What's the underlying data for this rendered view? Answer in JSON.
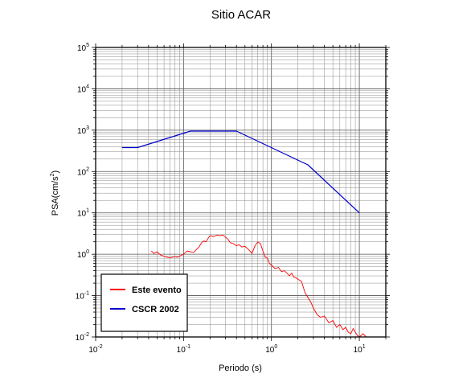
{
  "chart_data": {
    "type": "line",
    "title": "Sitio ACAR",
    "xlabel": "Periodo (s)",
    "ylabel_base": "PSA(cm/s",
    "ylabel_sup": "2",
    "ylabel_close": ")",
    "x_scale": "log",
    "y_scale": "log",
    "xlim": [
      0.01,
      20
    ],
    "ylim": [
      0.01,
      100000
    ],
    "grid": true,
    "legend_position": "bottom-left",
    "x_ticks": [
      {
        "base": "10",
        "exp": "-2",
        "value": 0.01
      },
      {
        "base": "10",
        "exp": "-1",
        "value": 0.1
      },
      {
        "base": "10",
        "exp": "0",
        "value": 1
      },
      {
        "base": "10",
        "exp": "1",
        "value": 10
      }
    ],
    "y_ticks": [
      {
        "base": "10",
        "exp": "-2",
        "value": 0.01
      },
      {
        "base": "10",
        "exp": "-1",
        "value": 0.1
      },
      {
        "base": "10",
        "exp": "0",
        "value": 1
      },
      {
        "base": "10",
        "exp": "1",
        "value": 10
      },
      {
        "base": "10",
        "exp": "2",
        "value": 100
      },
      {
        "base": "10",
        "exp": "3",
        "value": 1000
      },
      {
        "base": "10",
        "exp": "4",
        "value": 10000
      },
      {
        "base": "10",
        "exp": "5",
        "value": 100000
      }
    ],
    "series": [
      {
        "name": "Este evento",
        "color": "#ff0000",
        "x": [
          0.043,
          0.046,
          0.05,
          0.055,
          0.06,
          0.065,
          0.07,
          0.075,
          0.08,
          0.085,
          0.09,
          0.1,
          0.11,
          0.12,
          0.13,
          0.14,
          0.15,
          0.16,
          0.17,
          0.18,
          0.19,
          0.2,
          0.22,
          0.24,
          0.26,
          0.28,
          0.3,
          0.32,
          0.34,
          0.37,
          0.4,
          0.43,
          0.46,
          0.5,
          0.55,
          0.6,
          0.65,
          0.7,
          0.75,
          0.8,
          0.85,
          0.9,
          0.95,
          1.0,
          1.1,
          1.2,
          1.3,
          1.4,
          1.5,
          1.6,
          1.7,
          1.8,
          1.9,
          2.0,
          2.2,
          2.4,
          2.6,
          2.8,
          3.0,
          3.3,
          3.6,
          4.0,
          4.5,
          5.0,
          5.5,
          6.0,
          6.5,
          7.0,
          7.5,
          8.0,
          8.5,
          9.0,
          9.5,
          10,
          11,
          12
        ],
        "y": [
          1.2,
          1.05,
          1.15,
          0.95,
          0.9,
          0.85,
          0.82,
          0.85,
          0.88,
          0.85,
          0.9,
          1.0,
          1.2,
          1.15,
          1.1,
          1.3,
          1.5,
          1.9,
          2.1,
          2.0,
          2.4,
          2.8,
          2.7,
          2.9,
          2.8,
          2.9,
          2.6,
          2.3,
          1.9,
          1.8,
          1.6,
          1.7,
          1.5,
          1.55,
          1.3,
          1.05,
          1.6,
          2.0,
          1.8,
          1.2,
          0.85,
          0.8,
          0.6,
          0.55,
          0.45,
          0.48,
          0.38,
          0.4,
          0.35,
          0.3,
          0.35,
          0.28,
          0.27,
          0.25,
          0.22,
          0.12,
          0.09,
          0.07,
          0.05,
          0.035,
          0.03,
          0.032,
          0.022,
          0.025,
          0.017,
          0.02,
          0.015,
          0.017,
          0.013,
          0.012,
          0.016,
          0.013,
          0.011,
          0.01,
          0.012,
          0.01
        ]
      },
      {
        "name": "CSCR 2002",
        "color": "#0000cc",
        "x": [
          0.02,
          0.03,
          0.12,
          0.4,
          2.6,
          10
        ],
        "y": [
          380,
          380,
          950,
          950,
          145,
          10
        ]
      }
    ]
  }
}
